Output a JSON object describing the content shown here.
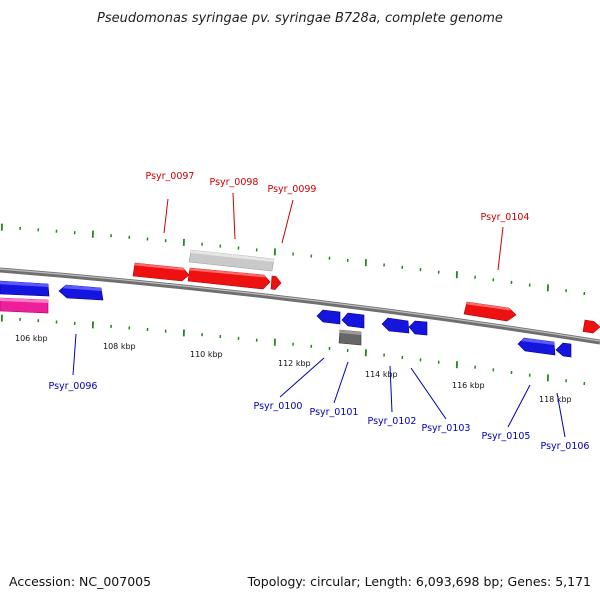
{
  "title": "Pseudomonas syringae pv. syringae B728a, complete genome",
  "footer": {
    "accession": "Accession: NC_007005",
    "summary": "Topology: circular; Length: 6,093,698 bp; Genes: 5,171"
  },
  "colors": {
    "forward_gene": "#ee1111",
    "reverse_gene": "#1515dd",
    "pseudo_gene": "#c8c8c8",
    "rna_gene": "#666666",
    "pink_gene": "#ee1f9a",
    "backbone": "#888888",
    "ticks": "#22881e",
    "forward_label": "#cc0000",
    "reverse_label": "#0000bb"
  },
  "scale_labels": [
    "106 kbp",
    "108 kbp",
    "110 kbp",
    "112 kbp",
    "114 kbp",
    "116 kbp",
    "118 kbp"
  ],
  "forward_labels": [
    "Psyr_0097",
    "Psyr_0098",
    "Psyr_0099",
    "Psyr_0104"
  ],
  "reverse_labels": [
    "Psyr_0096",
    "Psyr_0100",
    "Psyr_0101",
    "Psyr_0102",
    "Psyr_0103",
    "Psyr_0105",
    "Psyr_0106"
  ]
}
